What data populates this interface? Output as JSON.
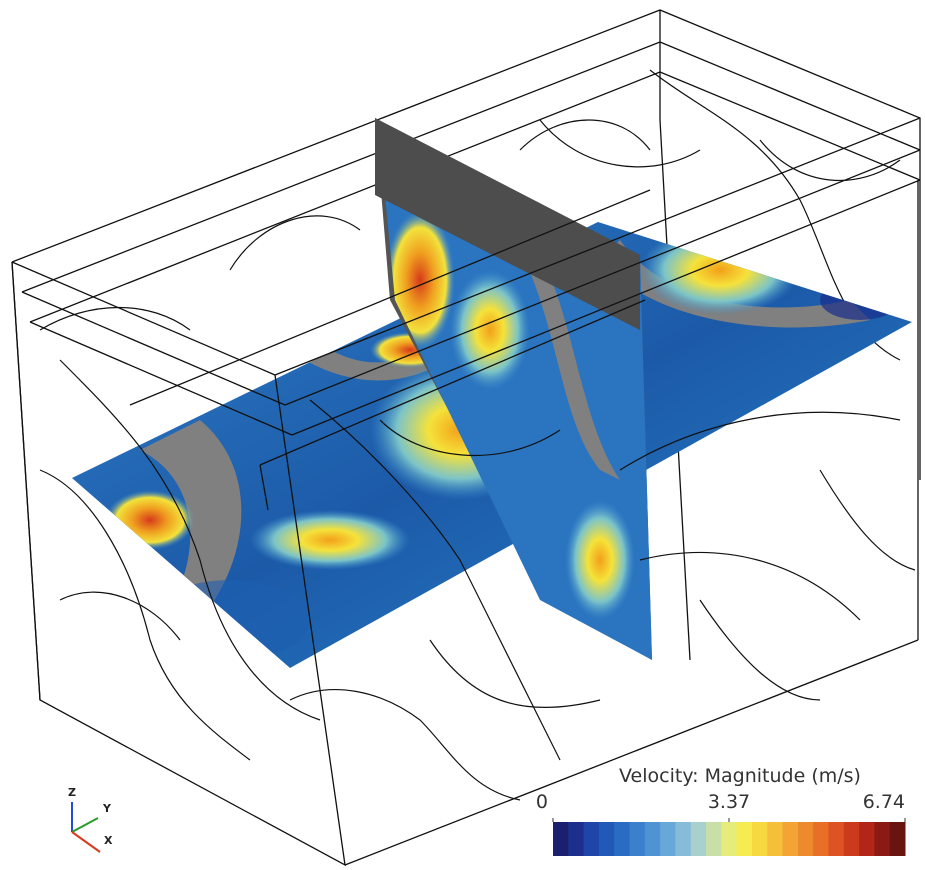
{
  "legend": {
    "title": "Velocity: Magnitude (m/s)",
    "ticks": [
      0,
      3.37,
      6.74
    ]
  },
  "axes_triad": {
    "z": "Z",
    "y": "Y",
    "x": "X"
  }
}
